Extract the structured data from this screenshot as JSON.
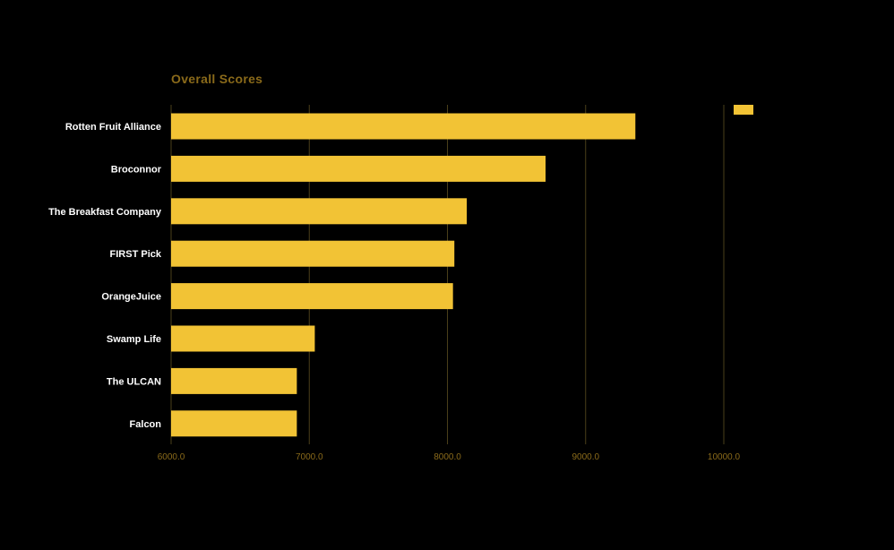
{
  "chart_data": {
    "type": "bar",
    "orientation": "horizontal",
    "title": "Overall Scores",
    "xlabel": "",
    "ylabel": "",
    "categories": [
      "Rotten Fruit Alliance",
      "Broconnor",
      "The Breakfast Company",
      "FIRST Pick",
      "OrangeJuice",
      "Swamp Life",
      "The ULCAN",
      "Falcon"
    ],
    "series": [
      {
        "values": [
          9360,
          8710,
          8140,
          8050,
          8040,
          7040,
          6910,
          6910
        ]
      }
    ],
    "xlim": [
      6000,
      10000
    ],
    "x_ticks": [
      "6000.0",
      "7000.0",
      "8000.0",
      "9000.0",
      "10000.0"
    ],
    "grid": "vertical",
    "legend": "top-right",
    "colors": {
      "background": "#000000",
      "bar": "#F2C335",
      "title": "#8A6A1A",
      "gridline": "#4A3F1A",
      "tick_label": "#8A6A1A",
      "category_label": "#FFFFFF"
    }
  }
}
